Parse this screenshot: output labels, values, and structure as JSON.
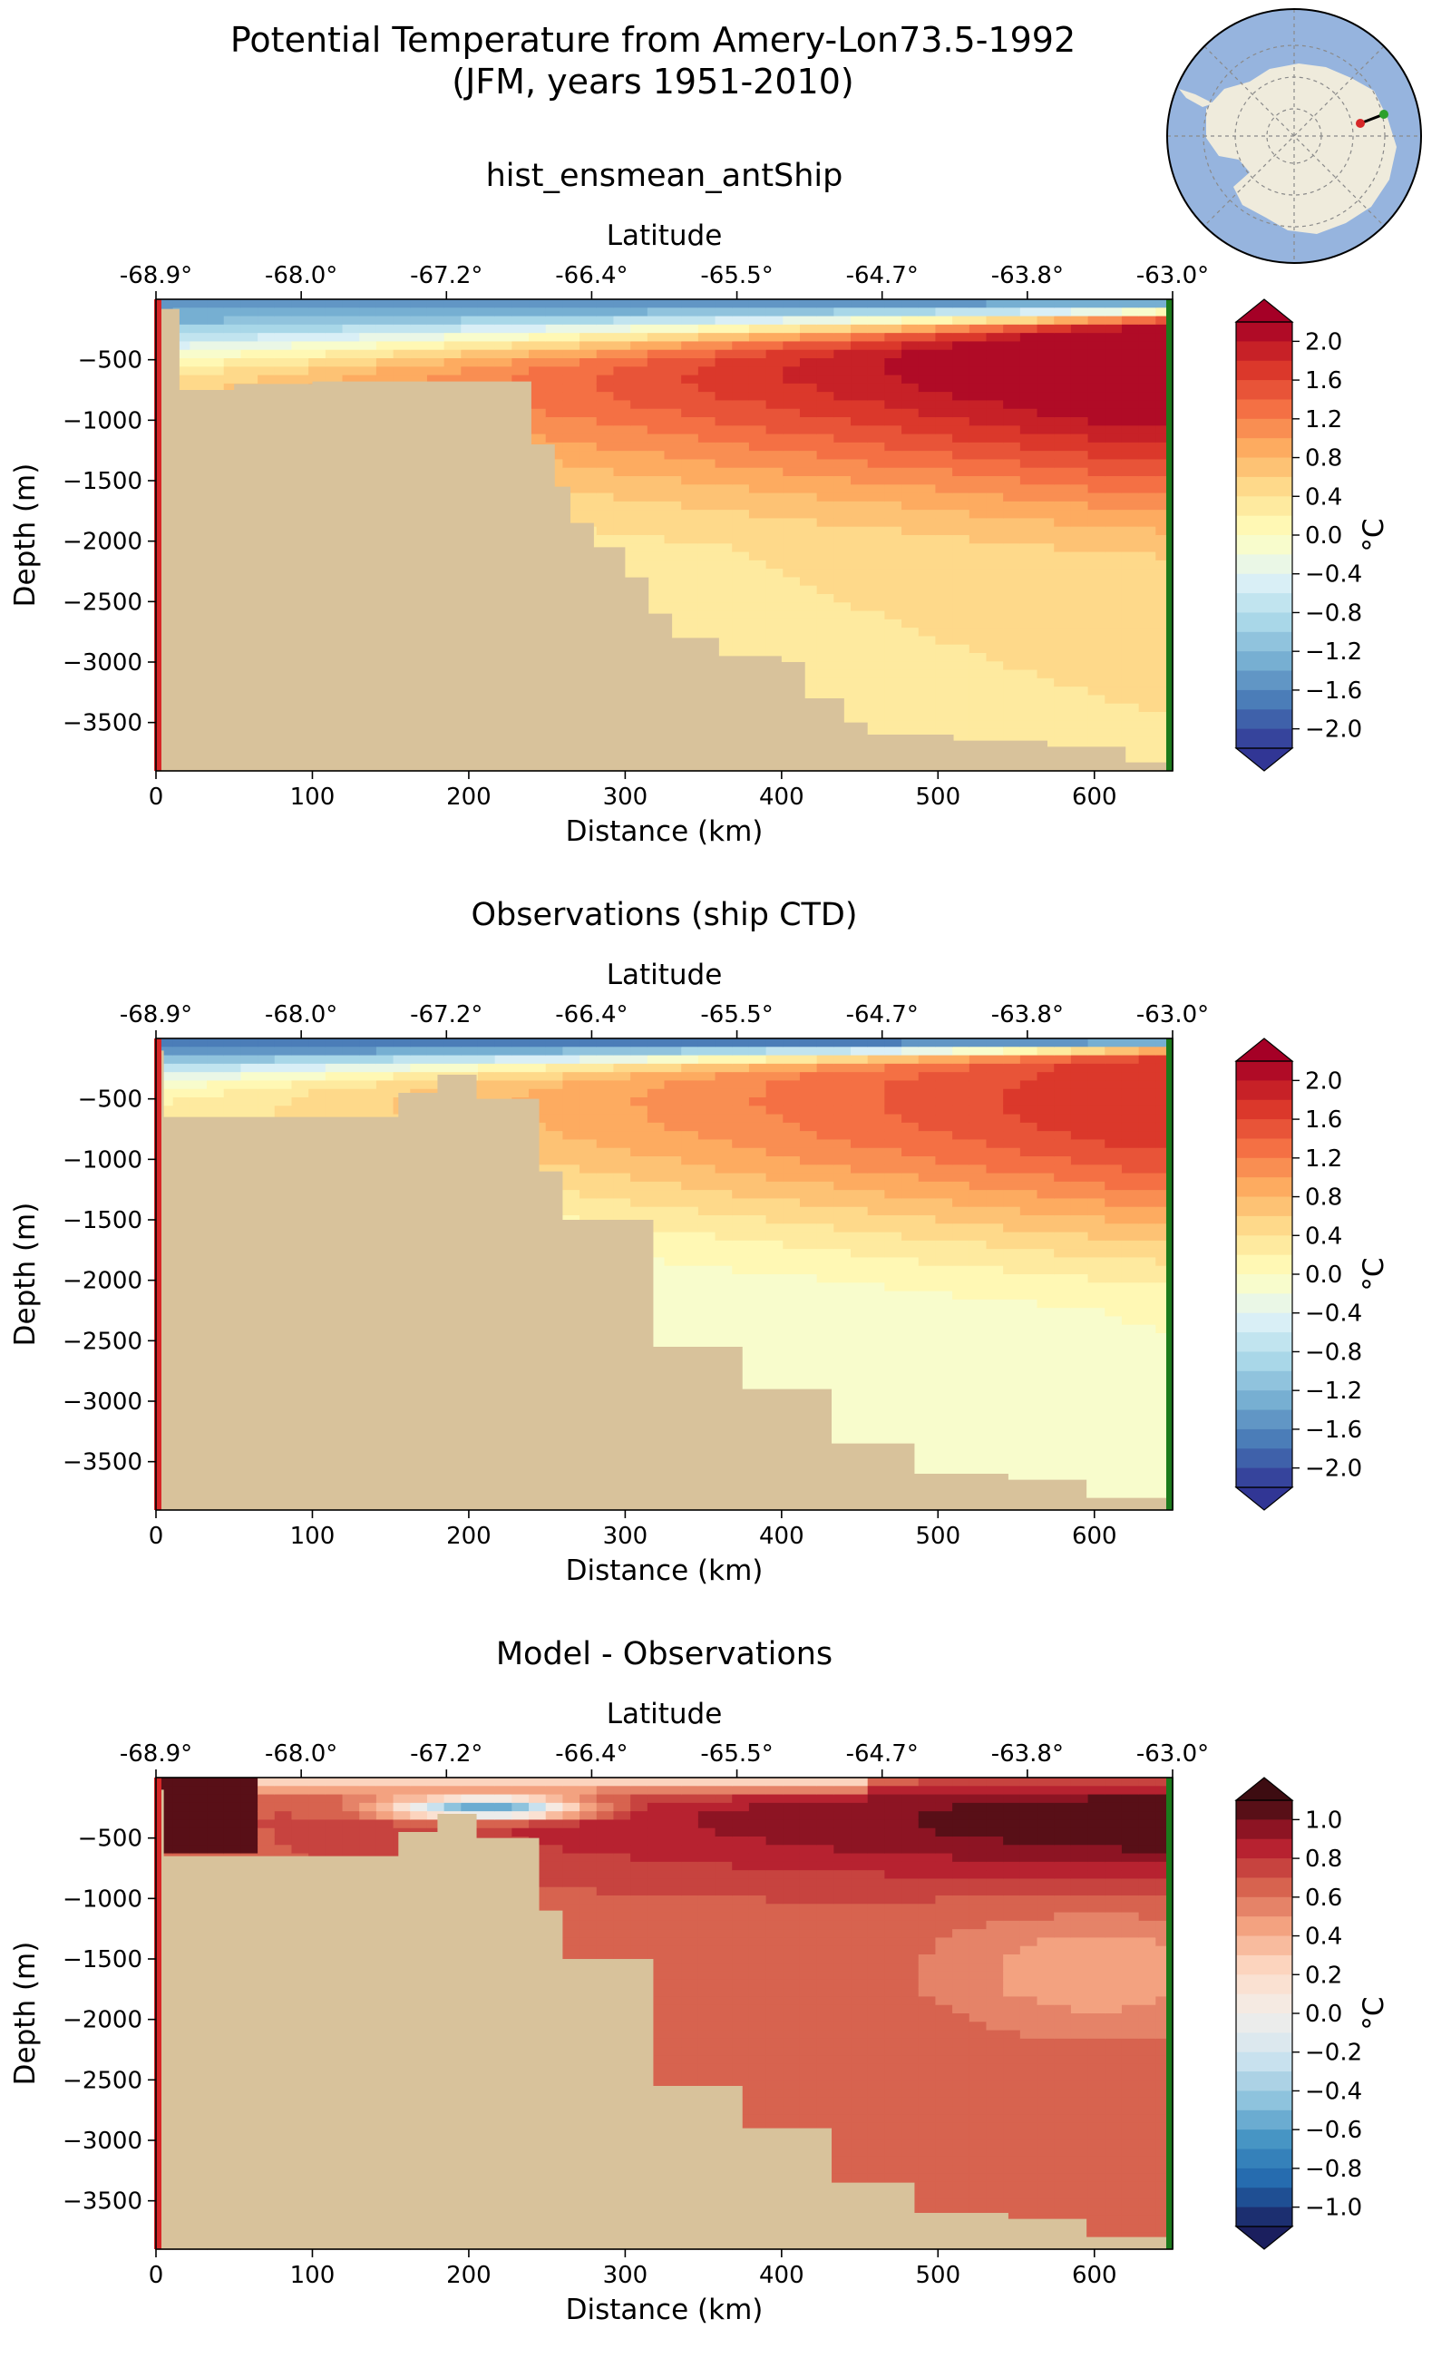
{
  "figure": {
    "title_line1": "Potential Temperature from Amery-Lon73.5-1992",
    "title_line2": "(JFM, years 1951-2010)",
    "inset_map": "antarctica-map-icon",
    "colors": {
      "seafloor": "#d8c29b",
      "start_marker": "#d62728",
      "end_marker": "#1b7a1b",
      "inset_ocean": "#96b4de",
      "inset_land": "#efebdc"
    }
  },
  "chart_data": [
    {
      "type": "heatmap",
      "title": "hist_ensmean_antShip",
      "xlabel": "Distance (km)",
      "ylabel": "Depth (m)",
      "top_xlabel": "Latitude",
      "xlim": [
        0,
        650
      ],
      "ylim": [
        -3900,
        0
      ],
      "x_ticks": [
        0,
        100,
        200,
        300,
        400,
        500,
        600
      ],
      "y_ticks": [
        -500,
        -1000,
        -1500,
        -2000,
        -2500,
        -3000,
        -3500
      ],
      "lat_ticks": [
        "-68.9°",
        "-68.0°",
        "-67.2°",
        "-66.4°",
        "-65.5°",
        "-64.7°",
        "-63.8°",
        "-63.0°"
      ],
      "colorbar": {
        "label": "°C",
        "ticks": [
          "2.0",
          "1.6",
          "1.2",
          "0.8",
          "0.4",
          "0.0",
          "-0.4",
          "-0.8",
          "-1.2",
          "-1.6",
          "-2.0"
        ],
        "vmin": -2.2,
        "vmax": 2.2,
        "palette": "RdYlBu_r"
      },
      "bathymetry": [
        [
          0,
          -3900
        ],
        [
          0,
          -80
        ],
        [
          15,
          -80
        ],
        [
          15,
          -750
        ],
        [
          50,
          -750
        ],
        [
          50,
          -700
        ],
        [
          100,
          -700
        ],
        [
          100,
          -680
        ],
        [
          240,
          -680
        ],
        [
          240,
          -1200
        ],
        [
          255,
          -1200
        ],
        [
          255,
          -1550
        ],
        [
          265,
          -1550
        ],
        [
          265,
          -1850
        ],
        [
          280,
          -1850
        ],
        [
          280,
          -2050
        ],
        [
          300,
          -2050
        ],
        [
          300,
          -2300
        ],
        [
          315,
          -2300
        ],
        [
          315,
          -2600
        ],
        [
          330,
          -2600
        ],
        [
          330,
          -2800
        ],
        [
          360,
          -2800
        ],
        [
          360,
          -2950
        ],
        [
          400,
          -2950
        ],
        [
          400,
          -3000
        ],
        [
          415,
          -3000
        ],
        [
          415,
          -3300
        ],
        [
          440,
          -3300
        ],
        [
          440,
          -3500
        ],
        [
          455,
          -3500
        ],
        [
          455,
          -3600
        ],
        [
          510,
          -3600
        ],
        [
          510,
          -3650
        ],
        [
          570,
          -3650
        ],
        [
          570,
          -3700
        ],
        [
          620,
          -3700
        ],
        [
          620,
          -3830
        ],
        [
          650,
          -3830
        ],
        [
          650,
          -3900
        ]
      ],
      "temperature_field": {
        "surface_layer_C": -1.5,
        "surface_layer_depth_m": 350,
        "warm_core_C": 2.4,
        "warm_core_distance_km": 600,
        "warm_core_depth_m": 450,
        "deep_offshore_C": 0.2
      }
    },
    {
      "type": "heatmap",
      "title": "Observations (ship CTD)",
      "xlabel": "Distance (km)",
      "ylabel": "Depth (m)",
      "top_xlabel": "Latitude",
      "xlim": [
        0,
        650
      ],
      "ylim": [
        -3900,
        0
      ],
      "x_ticks": [
        0,
        100,
        200,
        300,
        400,
        500,
        600
      ],
      "y_ticks": [
        -500,
        -1000,
        -1500,
        -2000,
        -2500,
        -3000,
        -3500
      ],
      "lat_ticks": [
        "-68.9°",
        "-68.0°",
        "-67.2°",
        "-66.4°",
        "-65.5°",
        "-64.7°",
        "-63.8°",
        "-63.0°"
      ],
      "colorbar": {
        "label": "°C",
        "ticks": [
          "2.0",
          "1.6",
          "1.2",
          "0.8",
          "0.4",
          "0.0",
          "-0.4",
          "-0.8",
          "-1.2",
          "-1.6",
          "-2.0"
        ],
        "vmin": -2.2,
        "vmax": 2.2,
        "palette": "RdYlBu_r"
      },
      "bathymetry": [
        [
          0,
          -3900
        ],
        [
          0,
          -100
        ],
        [
          5,
          -100
        ],
        [
          5,
          -650
        ],
        [
          155,
          -650
        ],
        [
          155,
          -450
        ],
        [
          180,
          -450
        ],
        [
          180,
          -300
        ],
        [
          205,
          -300
        ],
        [
          205,
          -500
        ],
        [
          245,
          -500
        ],
        [
          245,
          -1100
        ],
        [
          260,
          -1100
        ],
        [
          260,
          -1500
        ],
        [
          318,
          -1500
        ],
        [
          318,
          -2550
        ],
        [
          375,
          -2550
        ],
        [
          375,
          -2900
        ],
        [
          432,
          -2900
        ],
        [
          432,
          -3350
        ],
        [
          485,
          -3350
        ],
        [
          485,
          -3600
        ],
        [
          545,
          -3600
        ],
        [
          545,
          -3650
        ],
        [
          595,
          -3650
        ],
        [
          595,
          -3800
        ],
        [
          650,
          -3800
        ],
        [
          650,
          -3900
        ]
      ],
      "temperature_field": {
        "surface_layer_C": -1.8,
        "surface_layer_depth_m": 200,
        "warm_core_C": 1.8,
        "warm_core_distance_km": 620,
        "warm_core_depth_m": 500,
        "deep_offshore_C": -0.3
      }
    },
    {
      "type": "heatmap",
      "title": "Model - Observations",
      "xlabel": "Distance (km)",
      "ylabel": "Depth (m)",
      "top_xlabel": "Latitude",
      "xlim": [
        0,
        650
      ],
      "ylim": [
        -3900,
        0
      ],
      "x_ticks": [
        0,
        100,
        200,
        300,
        400,
        500,
        600
      ],
      "y_ticks": [
        -500,
        -1000,
        -1500,
        -2000,
        -2500,
        -3000,
        -3500
      ],
      "lat_ticks": [
        "-68.9°",
        "-68.0°",
        "-67.2°",
        "-66.4°",
        "-65.5°",
        "-64.7°",
        "-63.8°",
        "-63.0°"
      ],
      "colorbar": {
        "label": "°C",
        "ticks": [
          "1.0",
          "0.8",
          "0.6",
          "0.4",
          "0.2",
          "0.0",
          "-0.2",
          "-0.4",
          "-0.6",
          "-0.8",
          "-1.0"
        ],
        "vmin": -1.1,
        "vmax": 1.1,
        "palette": "RdBu_r"
      },
      "bathymetry": [
        [
          0,
          -3900
        ],
        [
          0,
          -100
        ],
        [
          5,
          -100
        ],
        [
          5,
          -650
        ],
        [
          155,
          -650
        ],
        [
          155,
          -450
        ],
        [
          180,
          -450
        ],
        [
          180,
          -300
        ],
        [
          205,
          -300
        ],
        [
          205,
          -500
        ],
        [
          245,
          -500
        ],
        [
          245,
          -1100
        ],
        [
          260,
          -1100
        ],
        [
          260,
          -1500
        ],
        [
          318,
          -1500
        ],
        [
          318,
          -2550
        ],
        [
          375,
          -2550
        ],
        [
          375,
          -2900
        ],
        [
          432,
          -2900
        ],
        [
          432,
          -3350
        ],
        [
          485,
          -3350
        ],
        [
          485,
          -3600
        ],
        [
          545,
          -3600
        ],
        [
          545,
          -3650
        ],
        [
          595,
          -3650
        ],
        [
          595,
          -3800
        ],
        [
          650,
          -3800
        ],
        [
          650,
          -3900
        ]
      ],
      "difference_field": {
        "surface_bias_C": 0.2,
        "warm_bias_offshore_C": 1.1,
        "warm_bias_offshore_km": 620,
        "deep_bias_C": 0.65,
        "cold_patch_distance_km": 210,
        "cold_patch_depth_m": 250,
        "cold_patch_C": -0.6
      }
    }
  ]
}
